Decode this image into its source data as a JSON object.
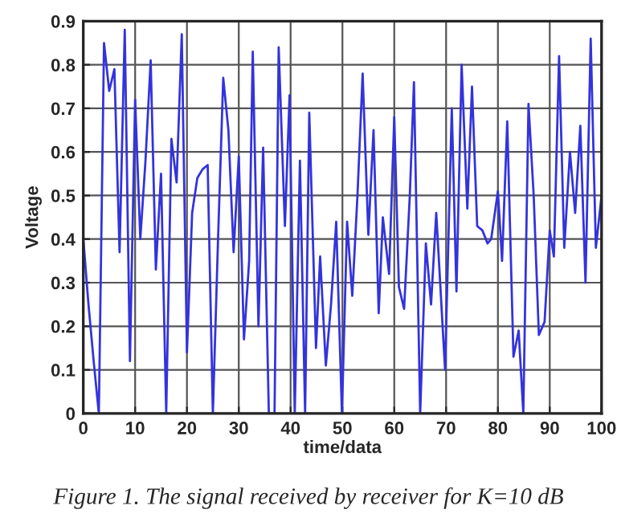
{
  "chart_data": {
    "type": "line",
    "xlabel": "time/data",
    "ylabel": "Voltage",
    "annotations": [
      "Figure 1. The signal received by receiver for K=10 dB"
    ],
    "series": [
      {
        "color": "#3333dd",
        "x": [
          0,
          1,
          2,
          3,
          4,
          5,
          6,
          7,
          8,
          9,
          10,
          11,
          12,
          13,
          14,
          15,
          16,
          17,
          18,
          19,
          20,
          21,
          22,
          23,
          24,
          25,
          26,
          27,
          28,
          29,
          30,
          31,
          32,
          32.7,
          33.8,
          34.7,
          35.8,
          36.9,
          37.7,
          38.9,
          39.8,
          40.8,
          41.8,
          42.8,
          43.6,
          44.9,
          45.7,
          46.8,
          47.8,
          48.8,
          49.9,
          50.9,
          51.9,
          52.9,
          53.9,
          55,
          56,
          57,
          57.8,
          59,
          60,
          60.9,
          61.9,
          63,
          63.8,
          65,
          66.1,
          67.1,
          68.1,
          69.8,
          71.1,
          72,
          73,
          74.1,
          75,
          76,
          77,
          78,
          78.7,
          80,
          80.8,
          81.8,
          83,
          84,
          84.9,
          85.9,
          86.9,
          87.9,
          89,
          90,
          90.8,
          91.8,
          92.8,
          93.9,
          94.9,
          95.9,
          96.9,
          97.9,
          98.9,
          100
        ],
        "values": [
          0.4,
          0.25,
          0.12,
          0.0,
          0.85,
          0.74,
          0.79,
          0.37,
          0.88,
          0.12,
          0.72,
          0.4,
          0.58,
          0.81,
          0.33,
          0.55,
          0.0,
          0.63,
          0.53,
          0.87,
          0.14,
          0.46,
          0.54,
          0.56,
          0.57,
          0.0,
          0.4,
          0.77,
          0.65,
          0.37,
          0.59,
          0.17,
          0.35,
          0.83,
          0.2,
          0.61,
          0.0,
          0.0,
          0.84,
          0.43,
          0.73,
          0.0,
          0.58,
          0.0,
          0.69,
          0.15,
          0.36,
          0.11,
          0.25,
          0.44,
          0.0,
          0.44,
          0.27,
          0.5,
          0.78,
          0.41,
          0.65,
          0.23,
          0.45,
          0.32,
          0.68,
          0.29,
          0.24,
          0.5,
          0.76,
          0.0,
          0.39,
          0.25,
          0.46,
          0.1,
          0.7,
          0.28,
          0.8,
          0.47,
          0.75,
          0.43,
          0.42,
          0.39,
          0.4,
          0.51,
          0.35,
          0.67,
          0.13,
          0.19,
          0.0,
          0.71,
          0.5,
          0.18,
          0.21,
          0.42,
          0.36,
          0.82,
          0.38,
          0.6,
          0.46,
          0.66,
          0.3,
          0.86,
          0.38,
          0.5
        ]
      }
    ],
    "xlim": [
      0,
      100
    ],
    "xticks": [
      0,
      10,
      20,
      30,
      40,
      50,
      60,
      70,
      80,
      90,
      100
    ],
    "ylim": [
      0,
      0.9
    ],
    "yticks": [
      0,
      0.1,
      0.2,
      0.3,
      0.4,
      0.5,
      0.6,
      0.7,
      0.8,
      0.9
    ],
    "grid": true,
    "marker": "none",
    "line_style": "solid"
  }
}
